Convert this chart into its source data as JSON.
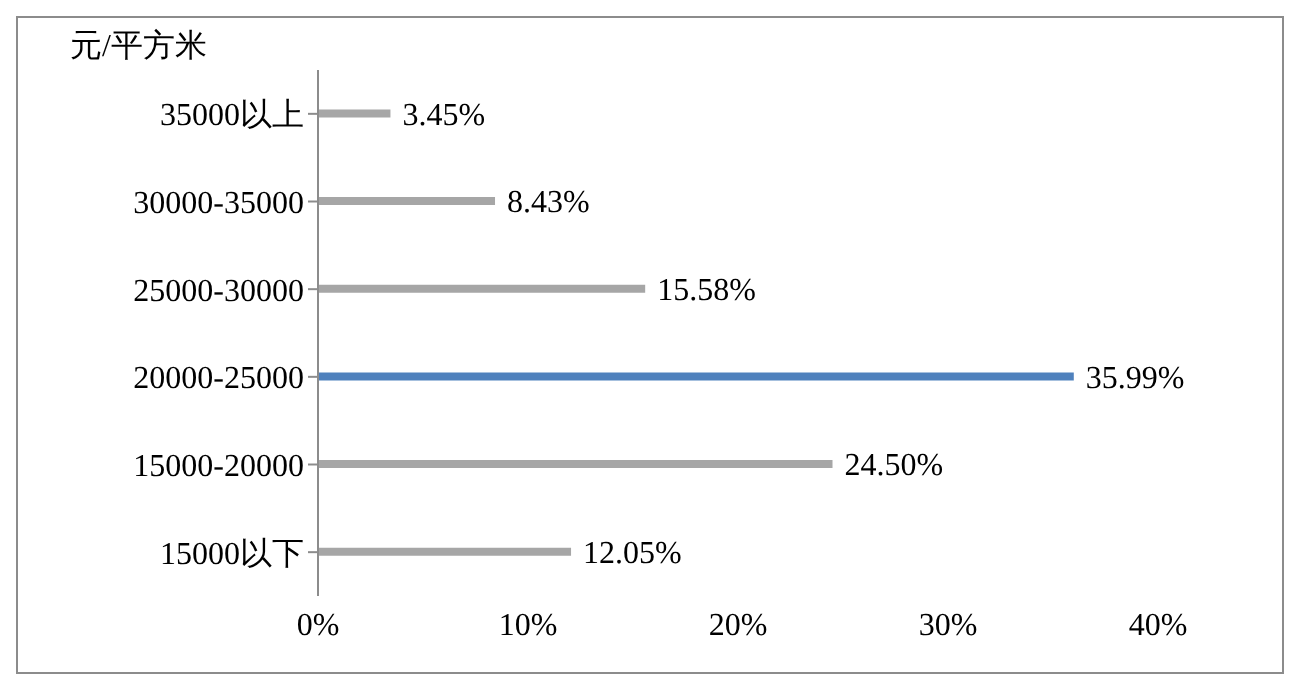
{
  "chart_data": {
    "type": "bar",
    "orientation": "horizontal",
    "ylabel": "元/平方米",
    "categories": [
      "35000以上",
      "30000-35000",
      "25000-30000",
      "20000-25000",
      "15000-20000",
      "15000以下"
    ],
    "values": [
      3.45,
      8.43,
      15.58,
      35.99,
      24.5,
      12.05
    ],
    "colors": [
      "#a6a6a6",
      "#a6a6a6",
      "#a6a6a6",
      "#4f81bd",
      "#a6a6a6",
      "#a6a6a6"
    ],
    "value_labels": [
      "3.45%",
      "8.43%",
      "15.58%",
      "35.99%",
      "24.50%",
      "12.05%"
    ],
    "xlim": [
      0,
      40
    ],
    "xticks": [
      {
        "value": 0,
        "label": "0%"
      },
      {
        "value": 10,
        "label": "10%"
      },
      {
        "value": 20,
        "label": "20%"
      },
      {
        "value": 30,
        "label": "30%"
      },
      {
        "value": 40,
        "label": "40%"
      }
    ],
    "grid": false,
    "legend": false
  }
}
